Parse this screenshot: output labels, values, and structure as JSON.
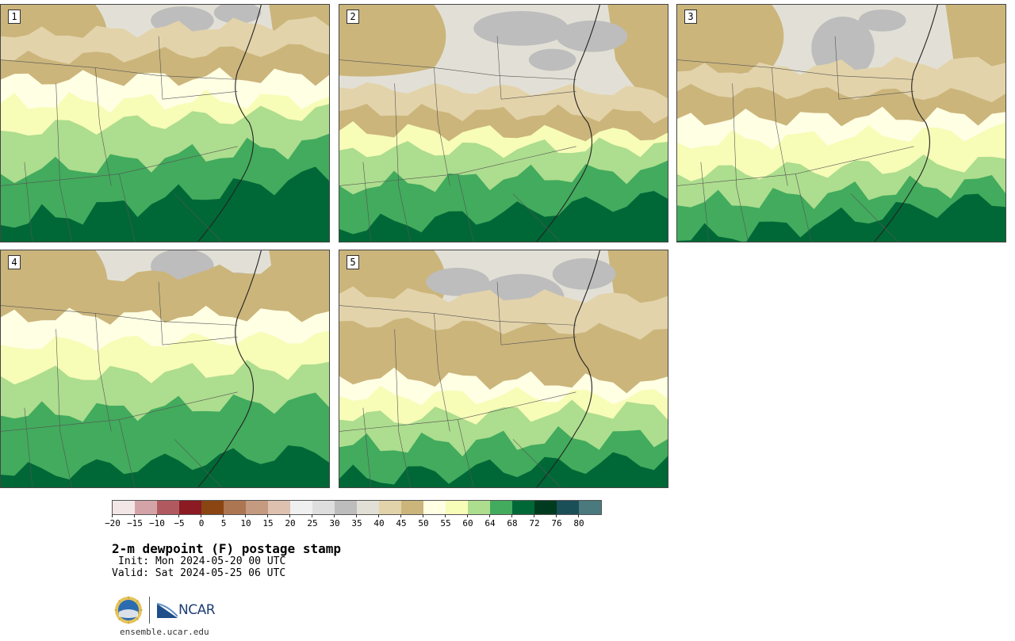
{
  "panels": [
    {
      "label": "1"
    },
    {
      "label": "2"
    },
    {
      "label": "3"
    },
    {
      "label": "4"
    },
    {
      "label": "5"
    }
  ],
  "colorbar": {
    "colors": [
      "#f3e6e6",
      "#d4a3a8",
      "#b05a60",
      "#8b1a22",
      "#8a4513",
      "#ad7652",
      "#c49a80",
      "#dfc1b0",
      "#f0f0f0",
      "#dedede",
      "#bdbdbd",
      "#e2e0d6",
      "#e3d3aa",
      "#cbb57b",
      "#ffffe4",
      "#f7fcb7",
      "#addd8e",
      "#42ab5d",
      "#006837",
      "#003b1f",
      "#1a4f58",
      "#4a7a7d"
    ],
    "tick_labels": [
      "−20",
      "−15",
      "−10",
      "−5",
      "0",
      "5",
      "10",
      "15",
      "20",
      "25",
      "30",
      "35",
      "40",
      "45",
      "50",
      "55",
      "60",
      "64",
      "68",
      "72",
      "76",
      "80"
    ]
  },
  "map_colors": {
    "tan_dark": "#cbb57b",
    "tan_light": "#e3d3aa",
    "gray_light": "#e2e0d6",
    "gray_mid": "#bdbdbd",
    "cream": "#ffffe4",
    "yellow": "#f7fcb7",
    "green_light": "#addd8e",
    "green_mid": "#42ab5d",
    "green_dark": "#006837",
    "green_darkest": "#003b1f"
  },
  "title": "2-m dewpoint (F) postage stamp",
  "init": "Init: Mon 2024-05-20 00 UTC",
  "valid": "Valid: Sat 2024-05-25 06 UTC",
  "logos": {
    "nsf": "nsf-logo",
    "ncar": "NCAR"
  },
  "site": "ensemble.ucar.edu"
}
